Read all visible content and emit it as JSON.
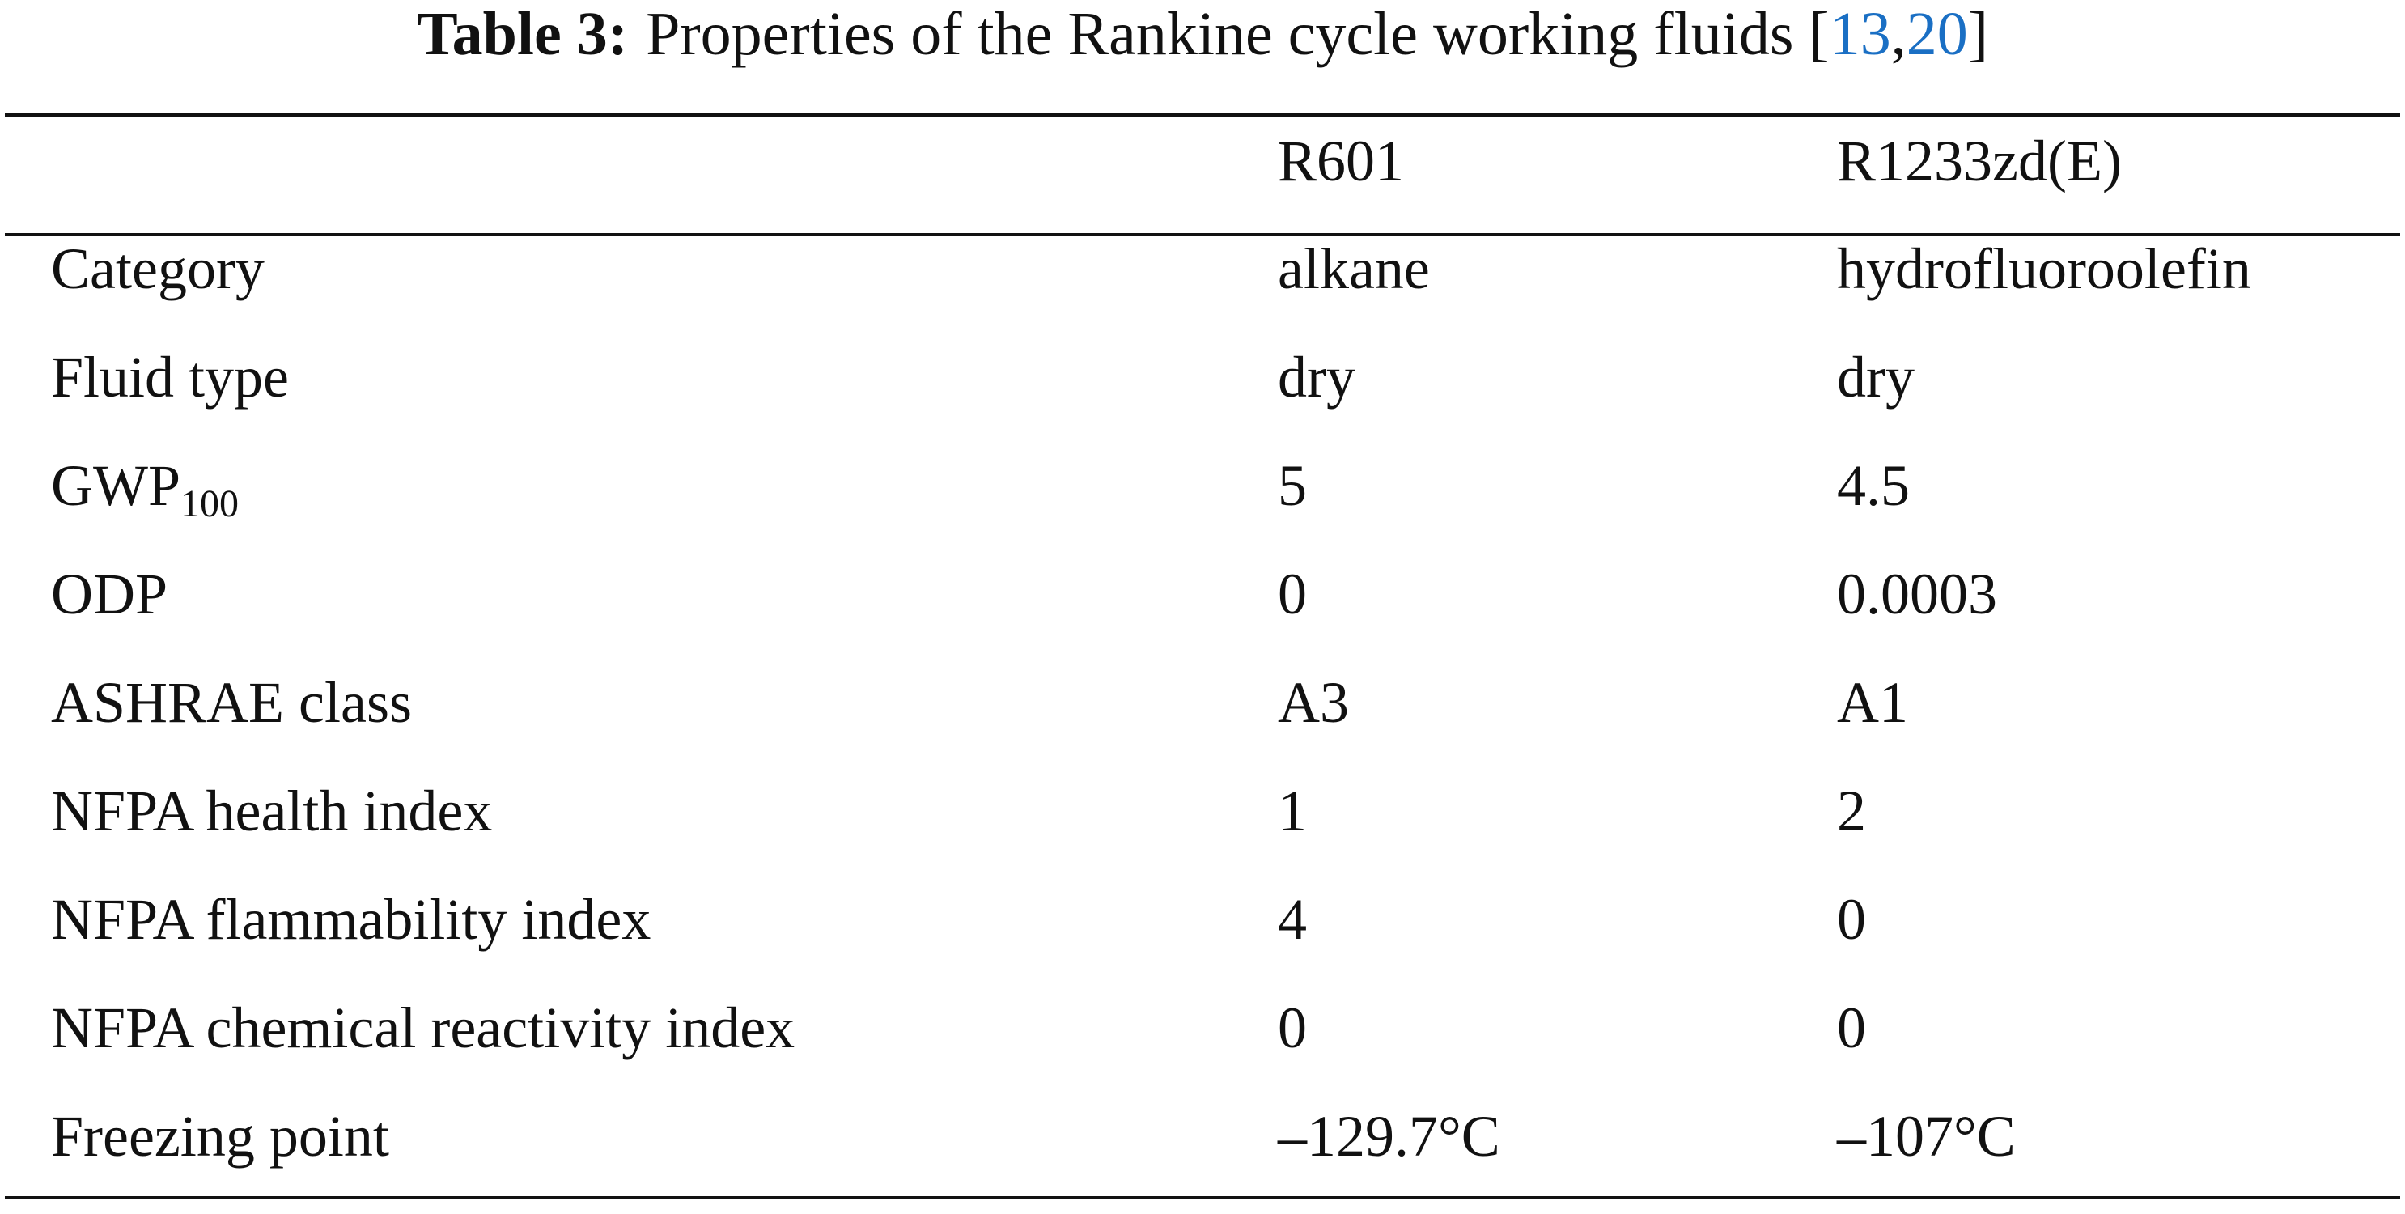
{
  "caption": {
    "label": "Table 3:",
    "text": "Properties of the Rankine cycle working fluids [",
    "refs": [
      "13",
      "20"
    ],
    "separator": ",",
    "close": "]"
  },
  "table": {
    "header": [
      "R601",
      "R1233zd(E)"
    ],
    "rows": [
      {
        "label": "Category",
        "values": [
          "alkane",
          "hydrofluoroolefin"
        ]
      },
      {
        "label": "Fluid type",
        "values": [
          "dry",
          "dry"
        ]
      },
      {
        "label": "GWP",
        "label_subscript": "100",
        "values": [
          "5",
          "4.5"
        ]
      },
      {
        "label": "ODP",
        "values": [
          "0",
          "0.0003"
        ]
      },
      {
        "label": "ASHRAE class",
        "values": [
          "A3",
          "A1"
        ]
      },
      {
        "label": "NFPA health index",
        "values": [
          "1",
          "2"
        ]
      },
      {
        "label": "NFPA flammability index",
        "values": [
          "4",
          "0"
        ]
      },
      {
        "label": "NFPA chemical reactivity index",
        "values": [
          "0",
          "0"
        ]
      },
      {
        "label": "Freezing point",
        "values": [
          "–129.7°C",
          "–107°C"
        ]
      }
    ]
  }
}
